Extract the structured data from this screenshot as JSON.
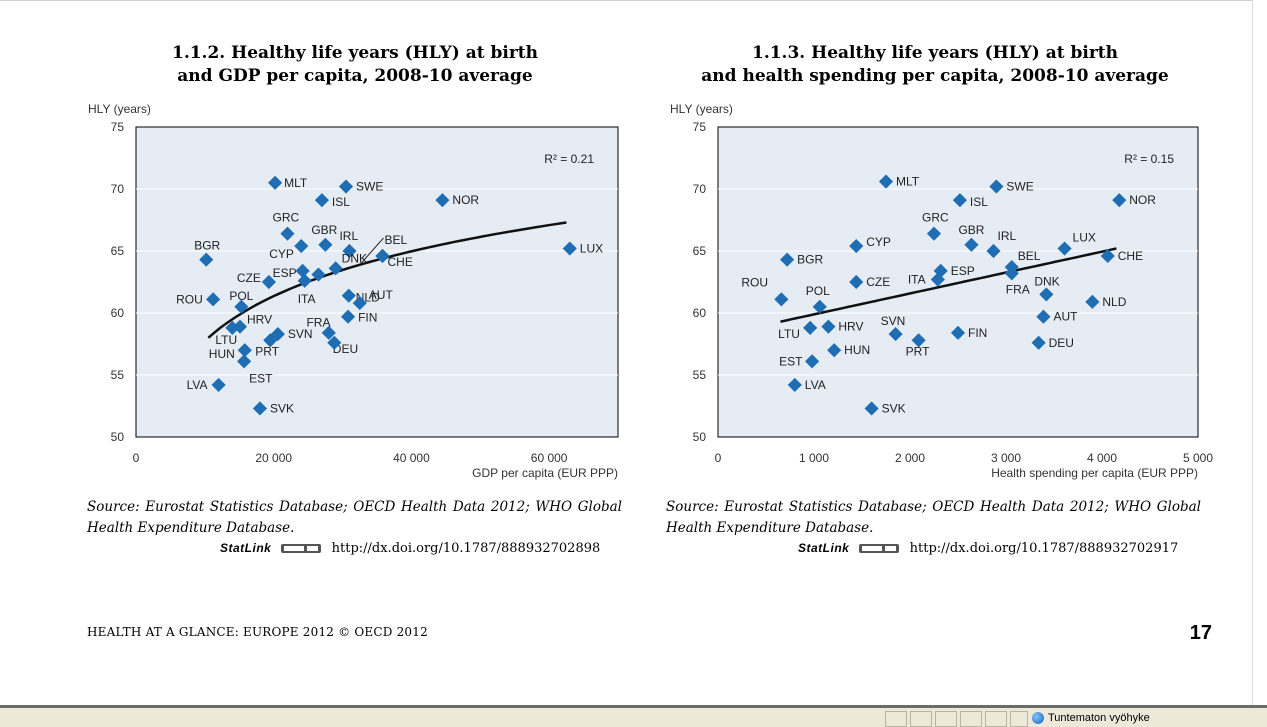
{
  "charts": [
    {
      "title_line1": "1.1.2. Healthy life years (HLY) at birth",
      "title_line2": "and GDP per capita, 2008-10 average",
      "source_label": "Source:",
      "source_text": "Eurostat Statistics Database; OECD Health Data 2012; WHO Global Health Expenditure Database.",
      "statlink_label": "StatLink",
      "statlink_url": "http://dx.doi.org/10.1787/888932702898"
    },
    {
      "title_line1": "1.1.3. Healthy life years (HLY) at birth",
      "title_line2": "and health spending per capita, 2008-10 average",
      "source_label": "Source:",
      "source_text": "Eurostat Statistics Database; OECD Health Data 2012; WHO Global Health Expenditure Database.",
      "statlink_label": "StatLink",
      "statlink_url": "http://dx.doi.org/10.1787/888932702917"
    }
  ],
  "chart_data": [
    {
      "type": "scatter",
      "ylabel": "HLY (years)",
      "xlabel": "GDP per capita (EUR PPP)",
      "xlim": [
        0,
        70000
      ],
      "ylim": [
        50,
        75
      ],
      "xticks": [
        0,
        20000,
        40000,
        60000
      ],
      "xtick_labels": [
        "0",
        "20 000",
        "40 000",
        "60 000"
      ],
      "yticks": [
        50,
        55,
        60,
        65,
        70,
        75
      ],
      "r2_label": "R² = 0.21",
      "marker_color": "#1f6db3",
      "background": "#e6ecf4",
      "trend": {
        "type": "logarithmic",
        "x_from": 10500,
        "x_to": 62500,
        "y_from": 58.0,
        "y_to": 67.3
      },
      "points": [
        {
          "label": "MLT",
          "x": 20200,
          "y": 70.5
        },
        {
          "label": "SWE",
          "x": 30500,
          "y": 70.2
        },
        {
          "label": "ISL",
          "x": 27000,
          "y": 69.1
        },
        {
          "label": "NOR",
          "x": 44500,
          "y": 69.1
        },
        {
          "label": "GRC",
          "x": 22000,
          "y": 66.4
        },
        {
          "label": "GBR",
          "x": 27500,
          "y": 65.5
        },
        {
          "label": "CYP",
          "x": 24000,
          "y": 65.4
        },
        {
          "label": "IRL",
          "x": 31000,
          "y": 65.0
        },
        {
          "label": "BEL",
          "x": 35800,
          "y": 64.6
        },
        {
          "label": "CHE",
          "x": 35800,
          "y": 64.6
        },
        {
          "label": "LUX",
          "x": 63000,
          "y": 65.2
        },
        {
          "label": "BGR",
          "x": 10200,
          "y": 64.3
        },
        {
          "label": "ESP",
          "x": 24200,
          "y": 63.4
        },
        {
          "label": "ITA",
          "x": 24500,
          "y": 62.6
        },
        {
          "label": "FRA",
          "x": 26500,
          "y": 63.1
        },
        {
          "label": "DNK",
          "x": 29000,
          "y": 63.6
        },
        {
          "label": "CZE",
          "x": 19300,
          "y": 62.5
        },
        {
          "label": "ROU",
          "x": 11200,
          "y": 61.1
        },
        {
          "label": "POL",
          "x": 15300,
          "y": 60.5
        },
        {
          "label": "NLD",
          "x": 30900,
          "y": 61.4
        },
        {
          "label": "AUT",
          "x": 32500,
          "y": 60.8
        },
        {
          "label": "FIN",
          "x": 30800,
          "y": 59.7
        },
        {
          "label": "HRV",
          "x": 15100,
          "y": 58.9
        },
        {
          "label": "LTU",
          "x": 14000,
          "y": 58.8
        },
        {
          "label": "SVN",
          "x": 20600,
          "y": 58.3
        },
        {
          "label": "DEU",
          "x": 28000,
          "y": 58.4
        },
        {
          "label": "PRT",
          "x": 19500,
          "y": 57.8
        },
        {
          "label": "HUN",
          "x": 15800,
          "y": 57.0
        },
        {
          "label": "EST",
          "x": 15700,
          "y": 56.1
        },
        {
          "label": "LVA",
          "x": 12000,
          "y": 54.2
        },
        {
          "label": "SVK",
          "x": 18000,
          "y": 52.3
        },
        {
          "label": "",
          "x": 28800,
          "y": 57.6
        }
      ]
    },
    {
      "type": "scatter",
      "ylabel": "HLY (years)",
      "xlabel": "Health spending per capita (EUR PPP)",
      "xlim": [
        0,
        5000
      ],
      "ylim": [
        50,
        75
      ],
      "xticks": [
        0,
        1000,
        2000,
        3000,
        4000,
        5000
      ],
      "xtick_labels": [
        "0",
        "1 000",
        "2 000",
        "3 000",
        "4 000",
        "5 000"
      ],
      "yticks": [
        50,
        55,
        60,
        65,
        70,
        75
      ],
      "r2_label": "R² = 0.15",
      "marker_color": "#1f6db3",
      "background": "#e6ecf4",
      "trend": {
        "type": "linear",
        "x_from": 650,
        "x_to": 4150,
        "y_from": 59.3,
        "y_to": 65.2
      },
      "points": [
        {
          "label": "MLT",
          "x": 1750,
          "y": 70.6
        },
        {
          "label": "SWE",
          "x": 2900,
          "y": 70.2
        },
        {
          "label": "ISL",
          "x": 2520,
          "y": 69.1
        },
        {
          "label": "NOR",
          "x": 4180,
          "y": 69.1
        },
        {
          "label": "GRC",
          "x": 2250,
          "y": 66.4
        },
        {
          "label": "GBR",
          "x": 2640,
          "y": 65.5
        },
        {
          "label": "CYP",
          "x": 1440,
          "y": 65.4
        },
        {
          "label": "IRL",
          "x": 2870,
          "y": 65.0
        },
        {
          "label": "LUX",
          "x": 3610,
          "y": 65.2
        },
        {
          "label": "CHE",
          "x": 4060,
          "y": 64.6
        },
        {
          "label": "BGR",
          "x": 720,
          "y": 64.3
        },
        {
          "label": "BEL",
          "x": 3060,
          "y": 63.7
        },
        {
          "label": "ESP",
          "x": 2320,
          "y": 63.4
        },
        {
          "label": "ITA",
          "x": 2290,
          "y": 62.7
        },
        {
          "label": "FRA",
          "x": 3060,
          "y": 63.2
        },
        {
          "label": "CZE",
          "x": 1440,
          "y": 62.5
        },
        {
          "label": "ROU",
          "x": 660,
          "y": 61.1
        },
        {
          "label": "POL",
          "x": 1060,
          "y": 60.5
        },
        {
          "label": "DNK",
          "x": 3420,
          "y": 61.5
        },
        {
          "label": "NLD",
          "x": 3900,
          "y": 60.9
        },
        {
          "label": "AUT",
          "x": 3390,
          "y": 59.7
        },
        {
          "label": "LTU",
          "x": 960,
          "y": 58.8
        },
        {
          "label": "HRV",
          "x": 1150,
          "y": 58.9
        },
        {
          "label": "SVN",
          "x": 1850,
          "y": 58.3
        },
        {
          "label": "FIN",
          "x": 2500,
          "y": 58.4
        },
        {
          "label": "PRT",
          "x": 2090,
          "y": 57.8
        },
        {
          "label": "DEU",
          "x": 3340,
          "y": 57.6
        },
        {
          "label": "HUN",
          "x": 1210,
          "y": 57.0
        },
        {
          "label": "EST",
          "x": 980,
          "y": 56.1
        },
        {
          "label": "LVA",
          "x": 800,
          "y": 54.2
        },
        {
          "label": "SVK",
          "x": 1600,
          "y": 52.3
        }
      ]
    }
  ],
  "footer": {
    "book": "HEALTH AT A GLANCE: EUROPE 2012 © OECD 2012",
    "page_number": "17"
  },
  "statusbar": {
    "zone_text": "Tuntematon vyöhyke"
  }
}
